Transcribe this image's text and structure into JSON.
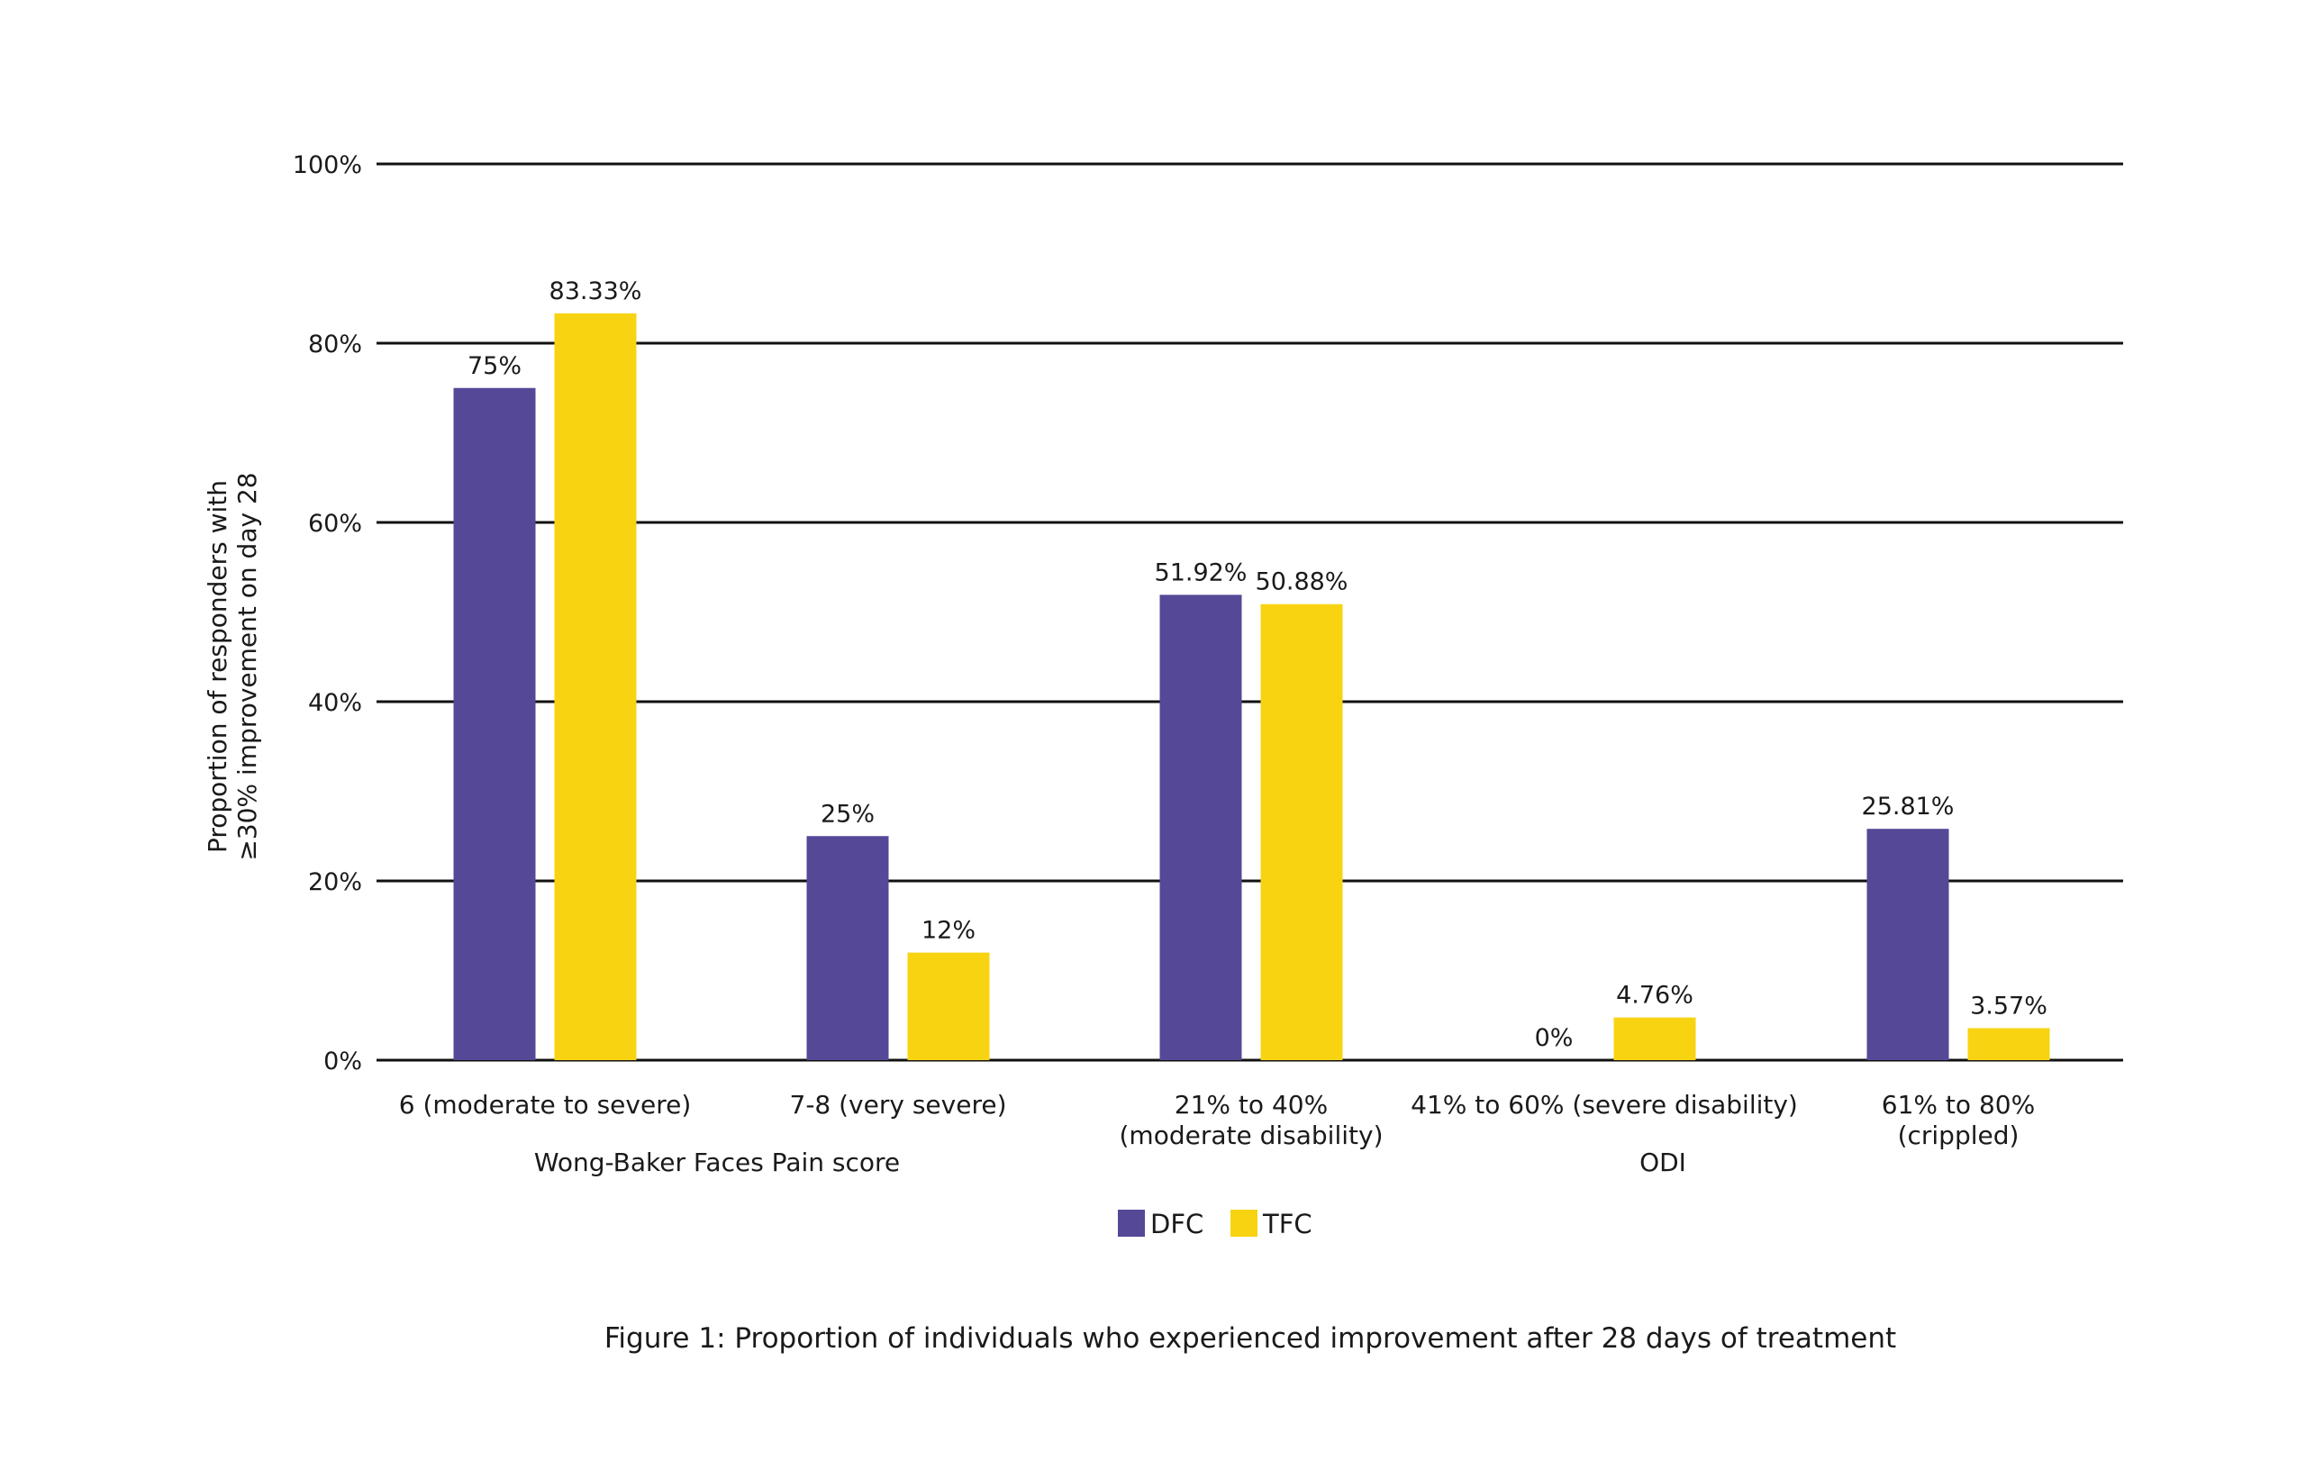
{
  "chart_data": {
    "type": "bar",
    "title": "",
    "caption": "Figure 1: Proportion of individuals who experienced improvement after 28 days of treatment",
    "ylabel_lines": [
      "Proportion of responders with",
      "≥30% improvement on day 28"
    ],
    "xlabel": "",
    "ylim": [
      0,
      100
    ],
    "yticks": [
      0,
      20,
      40,
      60,
      80,
      100
    ],
    "ytick_labels": [
      "0%",
      "20%",
      "40%",
      "60%",
      "80%",
      "100%"
    ],
    "grid": true,
    "legend_position": "bottom-center",
    "categories": [
      {
        "lines": [
          "6 (moderate to severe)"
        ]
      },
      {
        "lines": [
          "7-8 (very severe)"
        ]
      },
      {
        "lines": [
          "21% to 40%",
          "(moderate disability)"
        ]
      },
      {
        "lines": [
          "41% to 60% (severe disability)"
        ]
      },
      {
        "lines": [
          "61% to 80%",
          "(crippled)"
        ]
      }
    ],
    "category_groups": [
      {
        "label": "Wong-Baker Faces Pain score",
        "categories": [
          0,
          1
        ]
      },
      {
        "label": "ODI",
        "categories": [
          2,
          3,
          4
        ]
      }
    ],
    "series": [
      {
        "name": "DFC",
        "color": "#554897",
        "values": [
          75,
          25,
          51.92,
          0,
          25.81
        ],
        "labels": [
          "75%",
          "25%",
          "51.92%",
          "0%",
          "25.81%"
        ]
      },
      {
        "name": "TFC",
        "color": "#F8D312",
        "values": [
          83.33,
          12,
          50.88,
          4.76,
          3.57
        ],
        "labels": [
          "83.33%",
          "12%",
          "50.88%",
          "4.76%",
          "3.57%"
        ]
      }
    ]
  }
}
